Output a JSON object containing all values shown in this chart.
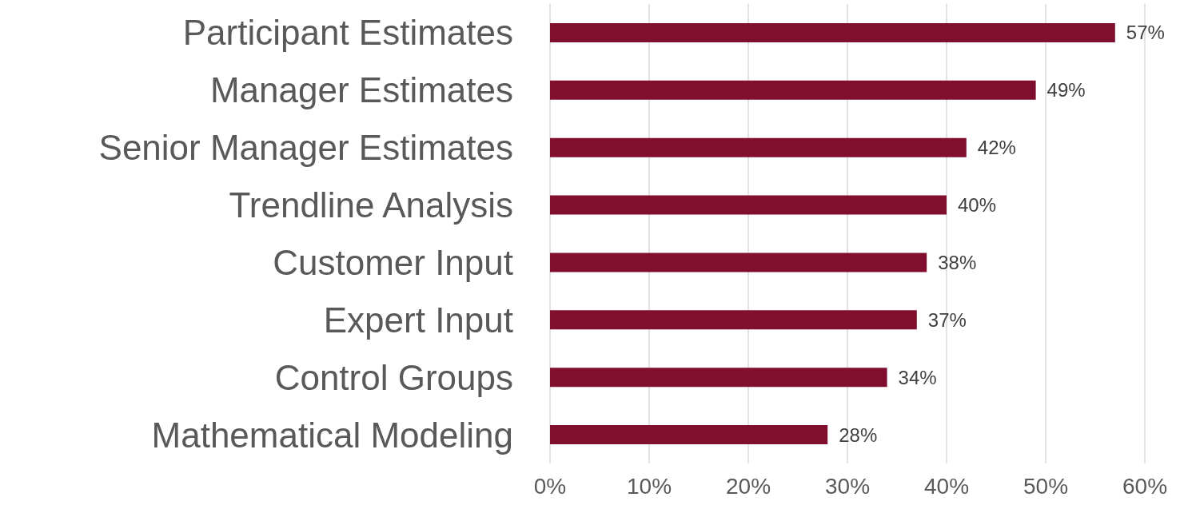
{
  "chart_data": {
    "type": "bar",
    "orientation": "horizontal",
    "categories": [
      "Participant Estimates",
      "Manager Estimates",
      "Senior Manager Estimates",
      "Trendline Analysis",
      "Customer Input",
      "Expert Input",
      "Control Groups",
      "Mathematical Modeling"
    ],
    "values": [
      57,
      49,
      42,
      40,
      38,
      37,
      34,
      28
    ],
    "value_labels": [
      "57%",
      "49%",
      "42%",
      "40%",
      "38%",
      "37%",
      "34%",
      "28%"
    ],
    "color": "#800e2f",
    "xlim": [
      0,
      60
    ],
    "xticks": [
      {
        "value": 0,
        "label": "0%"
      },
      {
        "value": 10,
        "label": "10%"
      },
      {
        "value": 20,
        "label": "20%"
      },
      {
        "value": 30,
        "label": "30%"
      },
      {
        "value": 40,
        "label": "40%"
      },
      {
        "value": 50,
        "label": "50%"
      },
      {
        "value": 60,
        "label": "60%"
      }
    ],
    "grid": "x"
  }
}
